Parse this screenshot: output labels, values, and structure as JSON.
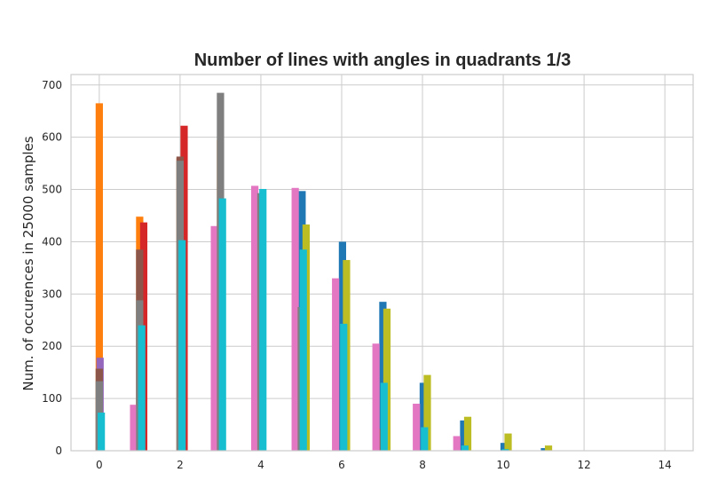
{
  "chart_data": {
    "type": "bar",
    "title": "Number of lines with angles in quadrants 1/3",
    "xlabel": "",
    "ylabel": "Num. of occurences in 25000 samples",
    "xlim": [
      -0.7,
      14.7
    ],
    "ylim": [
      0,
      720
    ],
    "xticks": [
      0,
      2,
      4,
      6,
      8,
      10,
      12,
      14
    ],
    "yticks": [
      0,
      100,
      200,
      300,
      400,
      500,
      600,
      700
    ],
    "grid": true,
    "bar_width": 0.18,
    "x": [
      0,
      1,
      2,
      3,
      4,
      5,
      6,
      7,
      8,
      9,
      10,
      11
    ],
    "series": [
      {
        "color": "#1f77b4",
        "offset": 0.02,
        "values": [
          0,
          0,
          0,
          0,
          0,
          497,
          400,
          285,
          130,
          58,
          15,
          5
        ]
      },
      {
        "color": "#ff7f0e",
        "offset": 0.0,
        "values": [
          665,
          448,
          560,
          595,
          0,
          138,
          0,
          0,
          0,
          0,
          0,
          0
        ]
      },
      {
        "color": "#d62728",
        "offset": 0.1,
        "values": [
          0,
          437,
          622,
          0,
          0,
          0,
          0,
          0,
          0,
          0,
          0,
          0
        ]
      },
      {
        "color": "#9467bd",
        "offset": 0.02,
        "values": [
          178,
          0,
          0,
          0,
          0,
          0,
          0,
          0,
          0,
          0,
          0,
          0
        ]
      },
      {
        "color": "#8c564b",
        "offset": 0.0,
        "values": [
          157,
          385,
          563,
          0,
          0,
          0,
          0,
          42,
          0,
          0,
          0,
          0
        ]
      },
      {
        "color": "#e377c2",
        "offset": -0.15,
        "values": [
          0,
          88,
          0,
          430,
          507,
          503,
          330,
          205,
          90,
          28,
          0,
          0
        ]
      },
      {
        "color": "#7f7f7f",
        "offset": 0.0,
        "values": [
          133,
          288,
          555,
          685,
          493,
          275,
          0,
          0,
          0,
          0,
          0,
          0
        ]
      },
      {
        "color": "#bcbd22",
        "offset": 0.12,
        "values": [
          0,
          0,
          0,
          0,
          0,
          433,
          365,
          272,
          145,
          65,
          33,
          10
        ]
      },
      {
        "color": "#17becf",
        "offset": 0.05,
        "values": [
          73,
          240,
          403,
          483,
          501,
          385,
          243,
          130,
          45,
          10,
          3,
          0
        ]
      }
    ]
  }
}
